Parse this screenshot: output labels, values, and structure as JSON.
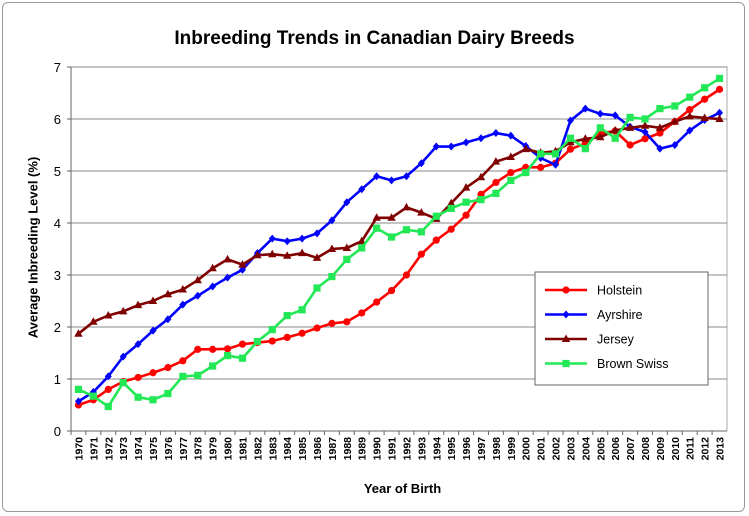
{
  "chart_data": {
    "type": "line",
    "title": "Inbreeding Trends in Canadian Dairy Breeds",
    "xlabel": "Year of Birth",
    "ylabel": "Average Inbreeding Level (%)",
    "ylim": [
      0,
      7
    ],
    "yticks": [
      "0",
      "1",
      "2",
      "3",
      "4",
      "5",
      "6",
      "7"
    ],
    "grid": true,
    "legend_position": "center-right",
    "categories": [
      "1970",
      "1971",
      "1972",
      "1973",
      "1974",
      "1975",
      "1976",
      "1977",
      "1978",
      "1979",
      "1980",
      "1981",
      "1982",
      "1983",
      "1984",
      "1985",
      "1986",
      "1987",
      "1988",
      "1989",
      "1990",
      "1991",
      "1992",
      "1993",
      "1994",
      "1995",
      "1996",
      "1997",
      "1998",
      "1999",
      "2000",
      "2001",
      "2002",
      "2003",
      "2004",
      "2005",
      "2006",
      "2007",
      "2008",
      "2009",
      "2010",
      "2011",
      "2012",
      "2013"
    ],
    "series": [
      {
        "name": "Holstein",
        "color": "#ff0000",
        "marker": "circle",
        "values": [
          0.5,
          0.6,
          0.8,
          0.95,
          1.03,
          1.12,
          1.22,
          1.35,
          1.57,
          1.57,
          1.58,
          1.67,
          1.7,
          1.73,
          1.8,
          1.88,
          1.98,
          2.07,
          2.1,
          2.27,
          2.48,
          2.7,
          3.0,
          3.4,
          3.67,
          3.88,
          4.15,
          4.55,
          4.78,
          4.97,
          5.07,
          5.07,
          5.15,
          5.42,
          5.53,
          5.72,
          5.77,
          5.5,
          5.62,
          5.73,
          5.95,
          6.18,
          6.38,
          6.57
        ]
      },
      {
        "name": "Ayrshire",
        "color": "#0000ff",
        "marker": "diamond",
        "values": [
          0.57,
          0.75,
          1.05,
          1.43,
          1.67,
          1.93,
          2.15,
          2.43,
          2.6,
          2.78,
          2.95,
          3.1,
          3.42,
          3.7,
          3.65,
          3.7,
          3.8,
          4.05,
          4.4,
          4.65,
          4.9,
          4.82,
          4.9,
          5.15,
          5.47,
          5.47,
          5.55,
          5.63,
          5.73,
          5.68,
          5.48,
          5.25,
          5.12,
          5.97,
          6.2,
          6.1,
          6.07,
          5.85,
          5.75,
          5.43,
          5.5,
          5.78,
          5.98,
          6.12
        ]
      },
      {
        "name": "Jersey",
        "color": "#800000",
        "marker": "triangle",
        "values": [
          1.87,
          2.1,
          2.22,
          2.3,
          2.42,
          2.5,
          2.63,
          2.72,
          2.9,
          3.13,
          3.3,
          3.2,
          3.38,
          3.4,
          3.37,
          3.42,
          3.33,
          3.5,
          3.52,
          3.65,
          4.1,
          4.1,
          4.3,
          4.2,
          4.08,
          4.38,
          4.68,
          4.88,
          5.18,
          5.27,
          5.42,
          5.35,
          5.38,
          5.55,
          5.62,
          5.65,
          5.78,
          5.83,
          5.87,
          5.83,
          5.95,
          6.05,
          6.02,
          6.0
        ]
      },
      {
        "name": "Brown Swiss",
        "color": "#22e855",
        "marker": "square",
        "values": [
          0.8,
          0.67,
          0.47,
          0.93,
          0.65,
          0.6,
          0.72,
          1.05,
          1.07,
          1.25,
          1.45,
          1.4,
          1.72,
          1.95,
          2.22,
          2.33,
          2.75,
          2.97,
          3.3,
          3.52,
          3.9,
          3.73,
          3.87,
          3.83,
          4.13,
          4.28,
          4.4,
          4.45,
          4.57,
          4.82,
          4.97,
          5.33,
          5.33,
          5.63,
          5.43,
          5.83,
          5.63,
          6.03,
          6.0,
          6.2,
          6.25,
          6.42,
          6.6,
          6.78
        ]
      }
    ]
  }
}
